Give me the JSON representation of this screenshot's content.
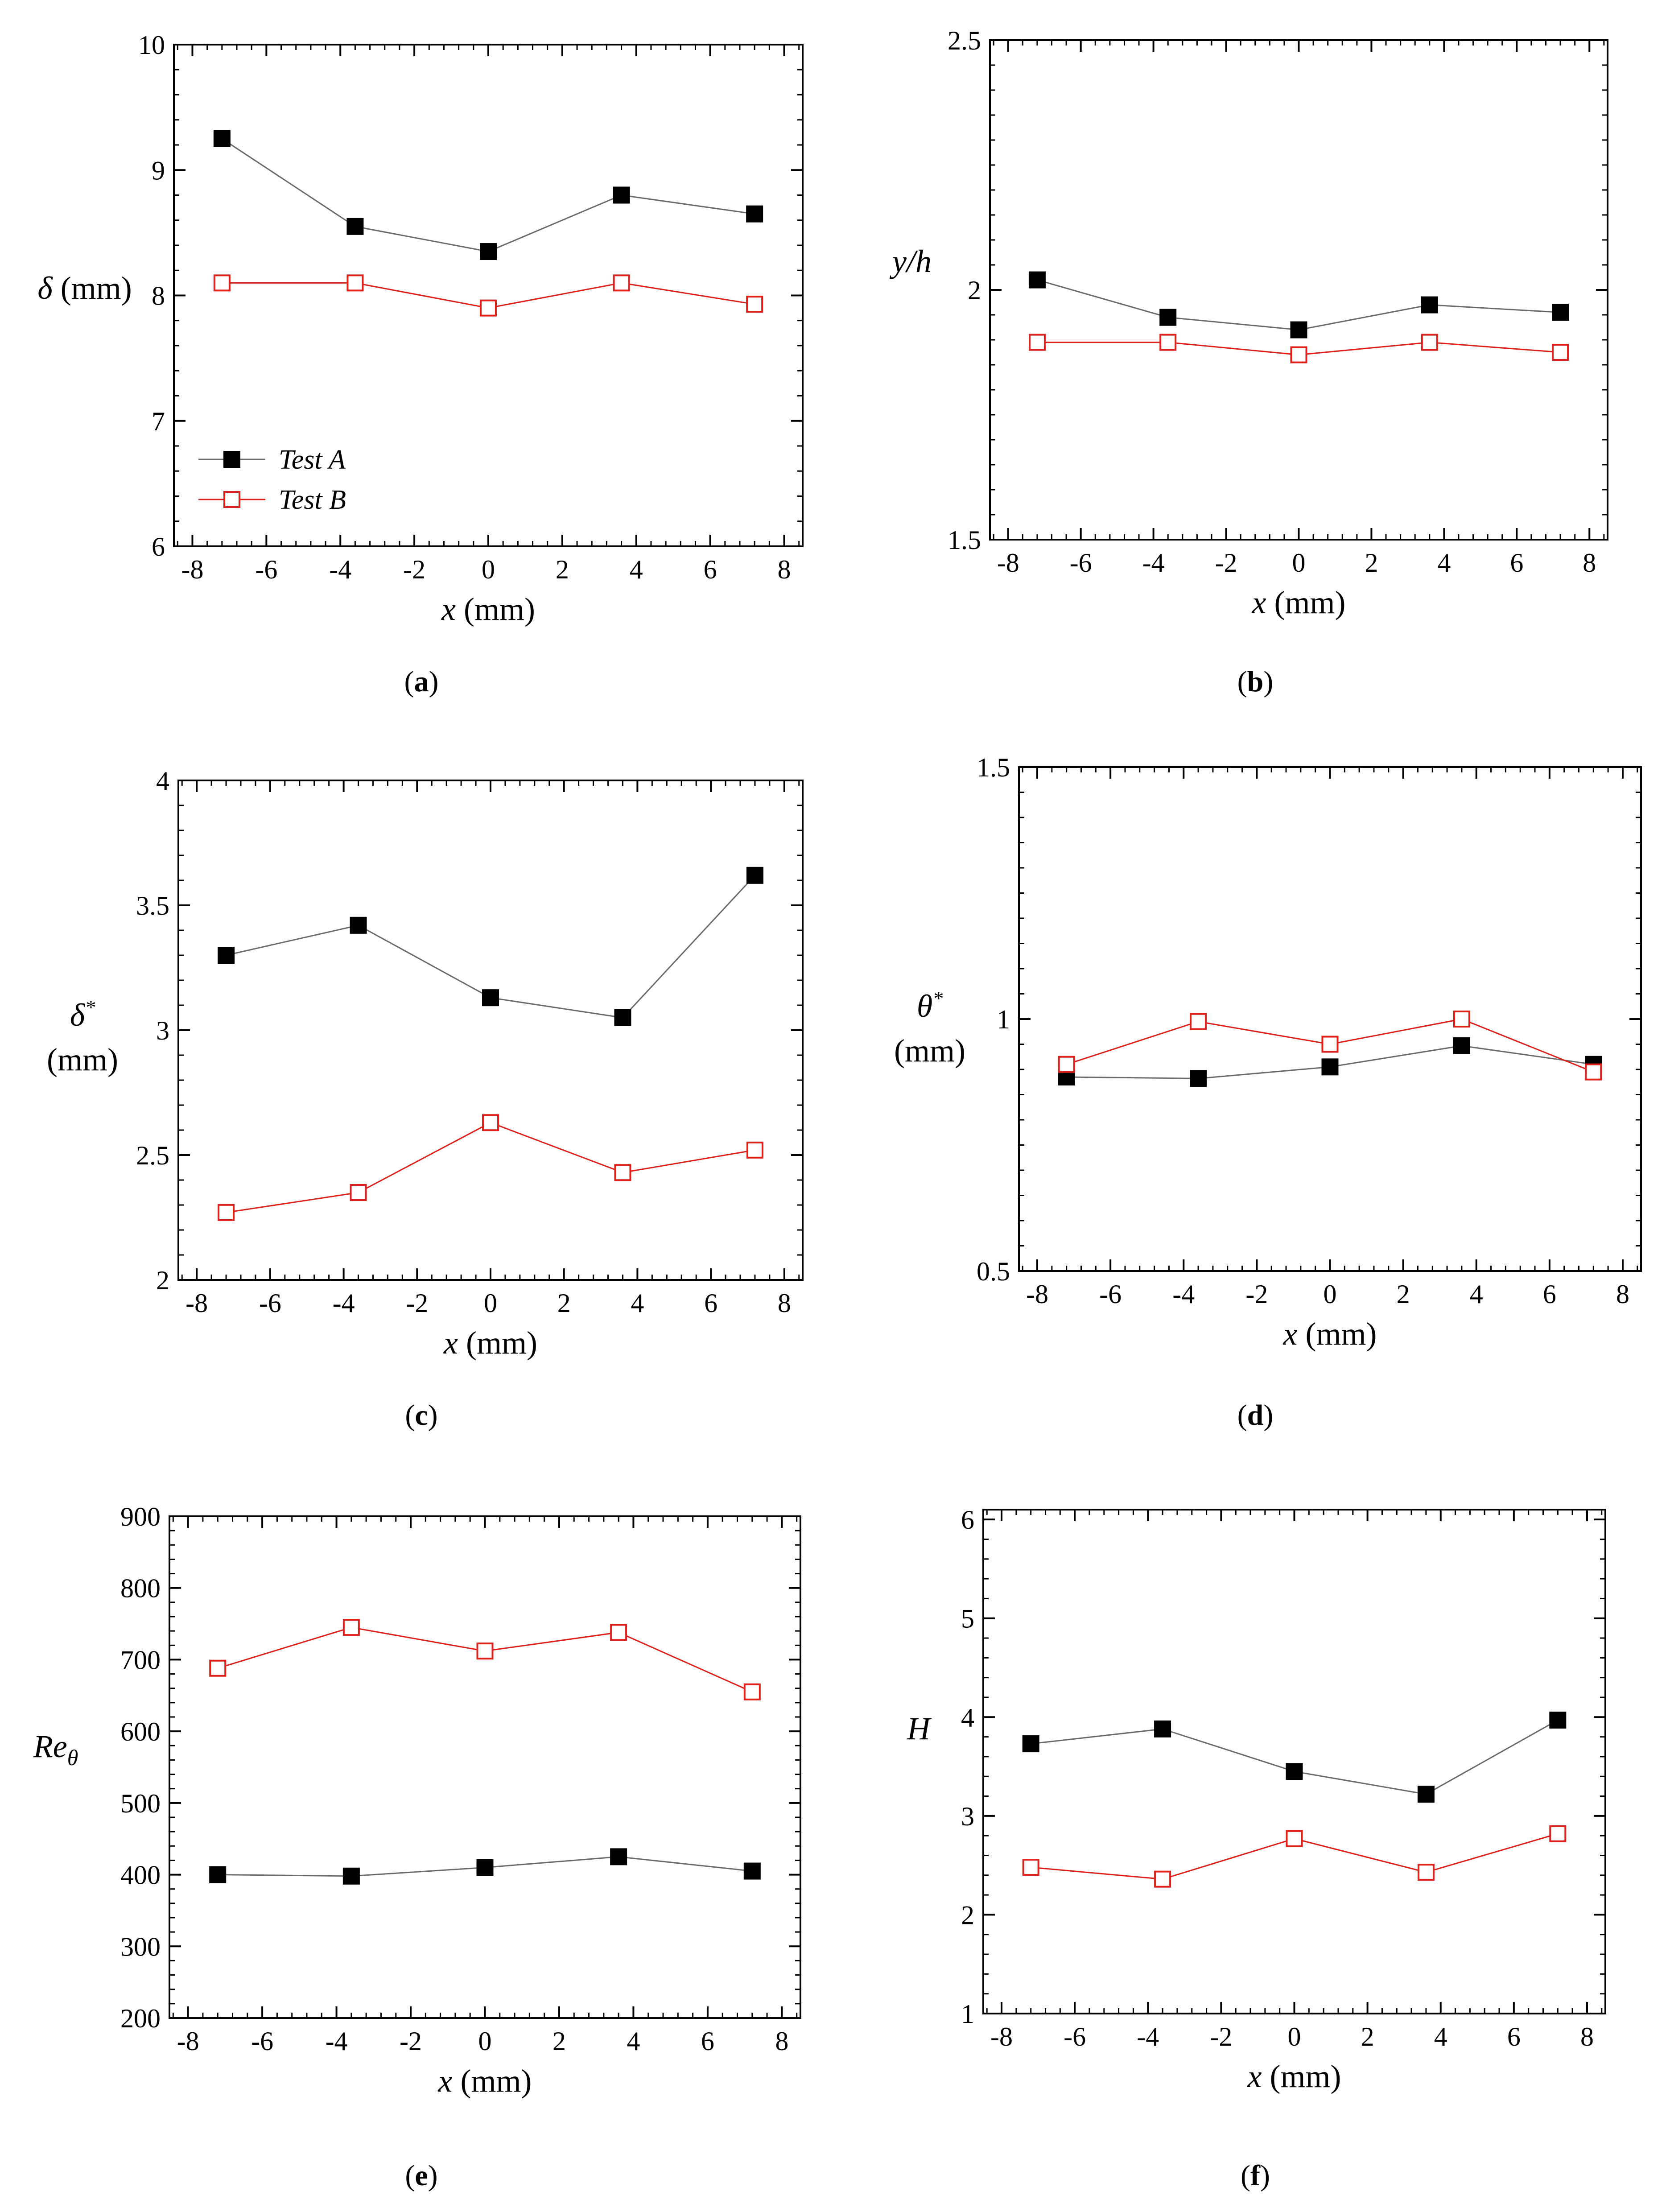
{
  "chart_data": [
    {
      "id": "a",
      "type": "line",
      "caption": "a",
      "xlabel": "x (mm)",
      "ylabel_symbol": "δ",
      "ylabel_unit": "(mm)",
      "xlim": [
        -8.5,
        8.5
      ],
      "ylim": [
        6,
        10
      ],
      "xticks": [
        -8,
        -6,
        -4,
        -2,
        0,
        2,
        4,
        6,
        8
      ],
      "yticks": [
        6,
        7,
        8,
        9,
        10
      ],
      "ytick_labels": [
        "6",
        "7",
        "8",
        "9",
        "10"
      ],
      "x": [
        -7.2,
        -3.6,
        0,
        3.6,
        7.2
      ],
      "series": [
        {
          "name": "Test A",
          "values": [
            9.25,
            8.55,
            8.35,
            8.8,
            8.65
          ]
        },
        {
          "name": "Test B",
          "values": [
            8.1,
            8.1,
            7.9,
            8.1,
            7.93
          ]
        }
      ],
      "legend": [
        "Test A",
        "Test B"
      ]
    },
    {
      "id": "b",
      "type": "line",
      "caption": "b",
      "xlabel": "x (mm)",
      "ylabel_symbol": "y/h",
      "ylabel_unit": "",
      "xlim": [
        -8.5,
        8.5
      ],
      "ylim": [
        1.5,
        2.5
      ],
      "xticks": [
        -8,
        -6,
        -4,
        -2,
        0,
        2,
        4,
        6,
        8
      ],
      "yticks": [
        1.5,
        2.0,
        2.5
      ],
      "ytick_labels": [
        "1.5",
        "2",
        "2.5"
      ],
      "x": [
        -7.2,
        -3.6,
        0,
        3.6,
        7.2
      ],
      "series": [
        {
          "name": "Test A",
          "values": [
            2.02,
            1.945,
            1.92,
            1.97,
            1.955
          ]
        },
        {
          "name": "Test B",
          "values": [
            1.895,
            1.895,
            1.87,
            1.895,
            1.875
          ]
        }
      ]
    },
    {
      "id": "c",
      "type": "line",
      "caption": "c",
      "xlabel": "x (mm)",
      "ylabel_symbol": "δ*",
      "ylabel_unit": "(mm)",
      "xlim": [
        -8.5,
        8.5
      ],
      "ylim": [
        2,
        4
      ],
      "xticks": [
        -8,
        -6,
        -4,
        -2,
        0,
        2,
        4,
        6,
        8
      ],
      "yticks": [
        2,
        2.5,
        3,
        3.5,
        4
      ],
      "ytick_labels": [
        "2",
        "2.5",
        "3",
        "3.5",
        "4"
      ],
      "x": [
        -7.2,
        -3.6,
        0,
        3.6,
        7.2
      ],
      "series": [
        {
          "name": "Test A",
          "values": [
            3.3,
            3.42,
            3.13,
            3.05,
            3.62
          ]
        },
        {
          "name": "Test B",
          "values": [
            2.27,
            2.35,
            2.63,
            2.43,
            2.52
          ]
        }
      ]
    },
    {
      "id": "d",
      "type": "line",
      "caption": "d",
      "xlabel": "x (mm)",
      "ylabel_symbol": "θ*",
      "ylabel_unit": "(mm)",
      "xlim": [
        -8.5,
        8.5
      ],
      "ylim": [
        0.5,
        1.5
      ],
      "xticks": [
        -8,
        -6,
        -4,
        -2,
        0,
        2,
        4,
        6,
        8
      ],
      "yticks": [
        0.5,
        1.0,
        1.5
      ],
      "ytick_labels": [
        "0.5",
        "1",
        "1.5"
      ],
      "x": [
        -7.2,
        -3.6,
        0,
        3.6,
        7.2
      ],
      "series": [
        {
          "name": "Test A",
          "values": [
            0.885,
            0.882,
            0.905,
            0.947,
            0.91
          ]
        },
        {
          "name": "Test B",
          "values": [
            0.91,
            0.995,
            0.95,
            1.0,
            0.895
          ]
        }
      ]
    },
    {
      "id": "e",
      "type": "line",
      "caption": "e",
      "xlabel": "x (mm)",
      "ylabel_symbol": "Reθ",
      "ylabel_unit": "",
      "xlim": [
        -8.5,
        8.5
      ],
      "ylim": [
        200,
        900
      ],
      "xticks": [
        -8,
        -6,
        -4,
        -2,
        0,
        2,
        4,
        6,
        8
      ],
      "yticks": [
        200,
        300,
        400,
        500,
        600,
        700,
        800,
        900
      ],
      "ytick_labels": [
        "200",
        "300",
        "400",
        "500",
        "600",
        "700",
        "800",
        "900"
      ],
      "x": [
        -7.2,
        -3.6,
        0,
        3.6,
        7.2
      ],
      "series": [
        {
          "name": "Test A",
          "values": [
            400,
            398,
            410,
            425,
            405
          ]
        },
        {
          "name": "Test B",
          "values": [
            688,
            745,
            712,
            738,
            655
          ]
        }
      ]
    },
    {
      "id": "f",
      "type": "line",
      "caption": "f",
      "xlabel": "x (mm)",
      "ylabel_symbol": "H",
      "ylabel_unit": "",
      "xlim": [
        -8.5,
        8.5
      ],
      "ylim": [
        1,
        6.1
      ],
      "xticks": [
        -8,
        -6,
        -4,
        -2,
        0,
        2,
        4,
        6,
        8
      ],
      "yticks": [
        1,
        2,
        3,
        4,
        5,
        6
      ],
      "ytick_labels": [
        "1",
        "2",
        "3",
        "4",
        "5",
        "6"
      ],
      "x": [
        -7.2,
        -3.6,
        0,
        3.6,
        7.2
      ],
      "series": [
        {
          "name": "Test A",
          "values": [
            3.73,
            3.88,
            3.45,
            3.22,
            3.97
          ]
        },
        {
          "name": "Test B",
          "values": [
            2.48,
            2.36,
            2.77,
            2.43,
            2.82
          ]
        }
      ]
    }
  ],
  "colors": {
    "test_a_marker": "#000000",
    "test_a_line": "#6b6b6b",
    "test_b_marker": "#e0201b",
    "test_b_line": "#e0201b",
    "axis": "#000000"
  }
}
